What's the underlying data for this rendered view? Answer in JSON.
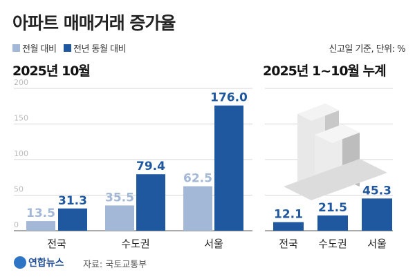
{
  "title": "아파트 매매거래 증가율",
  "unit_note": "신고일 기준, 단위: %",
  "colors": {
    "mom": "#a3b7d6",
    "yoy": "#2058a0",
    "grid": "#d4d4d4",
    "tick": "#bbbbbb"
  },
  "source": "자료: 국토교통부",
  "logo": "연합뉴스",
  "chart_data": [
    {
      "type": "bar",
      "subtitle": "2025년 10월",
      "categories": [
        "전국",
        "수도권",
        "서울"
      ],
      "series": [
        {
          "name": "전월 대비",
          "values": [
            13.5,
            35.5,
            62.5
          ],
          "color": "#a3b7d6"
        },
        {
          "name": "전년 동월 대비",
          "values": [
            31.3,
            79.4,
            176.0
          ],
          "color": "#2058a0"
        }
      ],
      "yticks": [
        "0",
        "50",
        "100",
        "150",
        "200"
      ],
      "ylim": [
        0,
        200
      ],
      "grid": true,
      "legend": "top-left"
    },
    {
      "type": "bar",
      "subtitle": "2025년 1~10월 누계",
      "categories": [
        "전국",
        "수도권",
        "서울"
      ],
      "series": [
        {
          "values": [
            12.1,
            21.5,
            45.3
          ],
          "color": "#2058a0"
        }
      ],
      "ylim": [
        0,
        200
      ],
      "grid": true
    }
  ]
}
